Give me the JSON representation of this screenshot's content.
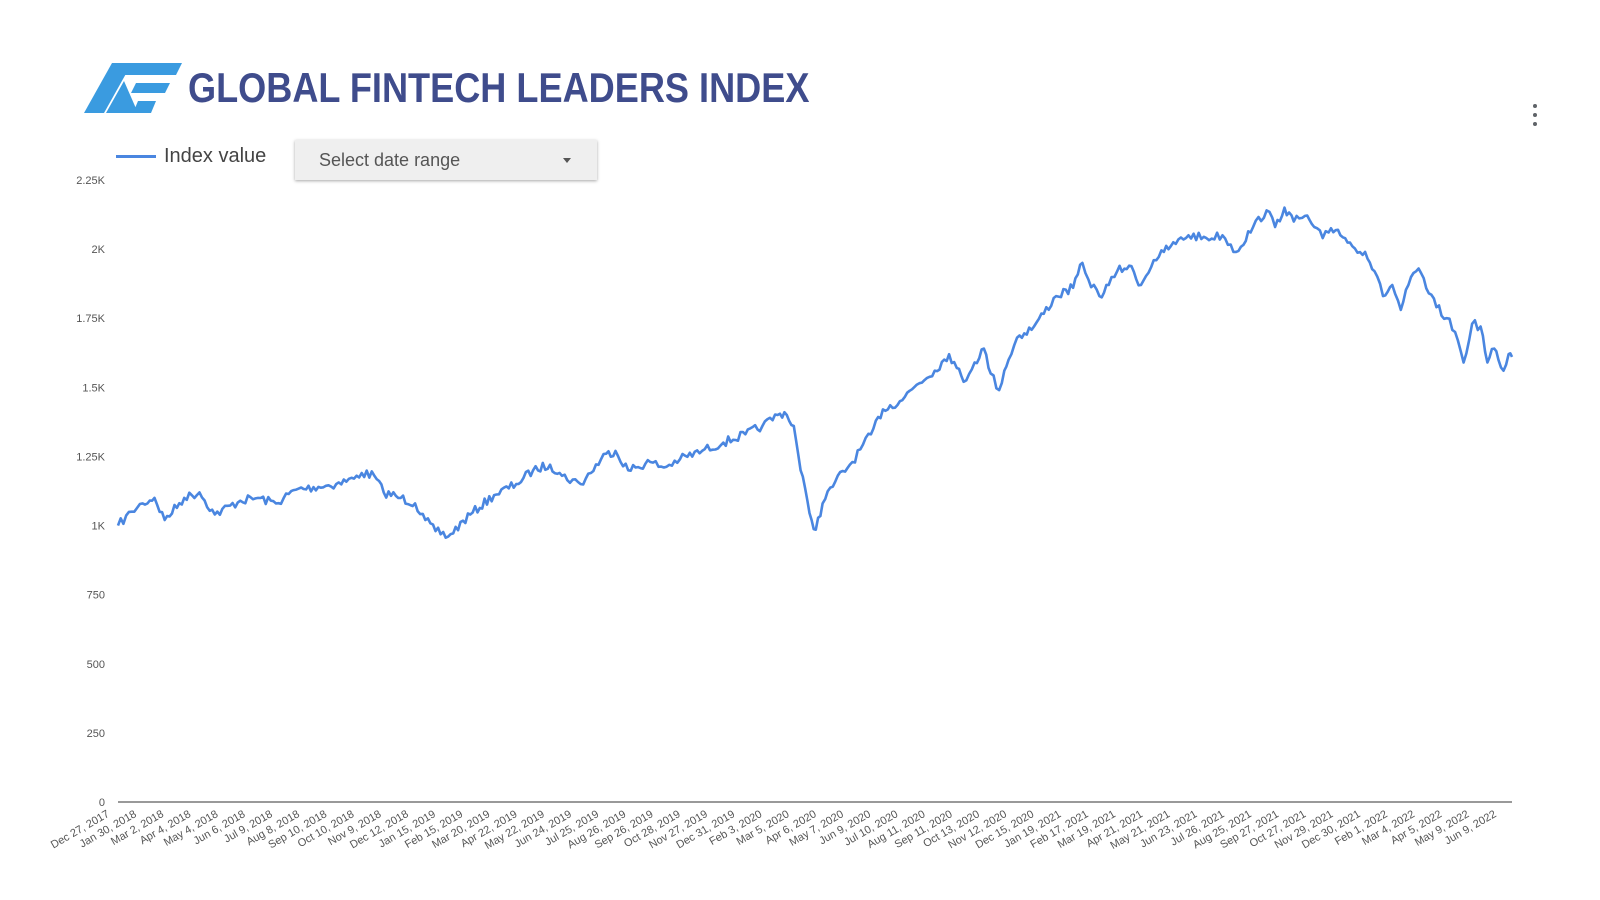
{
  "header": {
    "title": "GLOBAL FINTECH LEADERS INDEX",
    "logo_icon": "af-logo-icon"
  },
  "legend": {
    "label": "Index value",
    "color": "#4a86e0"
  },
  "controls": {
    "date_range_label": "Select date range",
    "menu_icon": "more-vertical-icon"
  },
  "chart_data": {
    "type": "line",
    "xlabel": "",
    "ylabel": "",
    "ylim": [
      0,
      2250
    ],
    "y_ticks": [
      0,
      250,
      500,
      750,
      1000,
      1250,
      1500,
      1750,
      2000,
      2250
    ],
    "y_tick_labels": [
      "0",
      "250",
      "500",
      "750",
      "1K",
      "1.25K",
      "1.5K",
      "1.75K",
      "2K",
      "2.25K"
    ],
    "x_tick_labels": [
      "Dec 27, 2017",
      "Jan 30, 2018",
      "Mar 2, 2018",
      "Apr 4, 2018",
      "May 4, 2018",
      "Jun 6, 2018",
      "Jul 9, 2018",
      "Aug 8, 2018",
      "Sep 10, 2018",
      "Oct 10, 2018",
      "Nov 9, 2018",
      "Dec 12, 2018",
      "Jan 15, 2019",
      "Feb 15, 2019",
      "Mar 20, 2019",
      "Apr 22, 2019",
      "May 22, 2019",
      "Jun 24, 2019",
      "Jul 25, 2019",
      "Aug 26, 2019",
      "Sep 26, 2019",
      "Oct 28, 2019",
      "Nov 27, 2019",
      "Dec 31, 2019",
      "Feb 3, 2020",
      "Mar 5, 2020",
      "Apr 6, 2020",
      "May 7, 2020",
      "Jun 9, 2020",
      "Jul 10, 2020",
      "Aug 11, 2020",
      "Sep 11, 2020",
      "Oct 13, 2020",
      "Nov 12, 2020",
      "Dec 15, 2020",
      "Jan 19, 2021",
      "Feb 17, 2021",
      "Mar 19, 2021",
      "Apr 21, 2021",
      "May 21, 2021",
      "Jun 23, 2021",
      "Jul 26, 2021",
      "Aug 25, 2021",
      "Sep 27, 2021",
      "Oct 27, 2021",
      "Nov 29, 2021",
      "Dec 30, 2021",
      "Feb 1, 2022",
      "Mar 4, 2022",
      "Apr 5, 2022",
      "May 9, 2022",
      "Jun 9, 2022"
    ],
    "series": [
      {
        "name": "Index value",
        "x": [
          "2017-12-27",
          "2018-01-12",
          "2018-01-25",
          "2018-02-08",
          "2018-02-20",
          "2018-03-15",
          "2018-04-02",
          "2018-04-20",
          "2018-05-20",
          "2018-06-10",
          "2018-07-01",
          "2018-07-25",
          "2018-08-20",
          "2018-09-10",
          "2018-10-01",
          "2018-10-10",
          "2018-10-25",
          "2018-11-05",
          "2018-11-25",
          "2018-12-12",
          "2018-12-24",
          "2019-01-05",
          "2019-01-20",
          "2019-02-15",
          "2019-03-15",
          "2019-04-10",
          "2019-04-30",
          "2019-05-20",
          "2019-06-03",
          "2019-06-25",
          "2019-07-25",
          "2019-08-05",
          "2019-08-20",
          "2019-09-15",
          "2019-10-01",
          "2019-10-20",
          "2019-11-15",
          "2019-12-10",
          "2020-01-05",
          "2020-01-25",
          "2020-02-12",
          "2020-02-20",
          "2020-03-02",
          "2020-03-10",
          "2020-03-18",
          "2020-03-23",
          "2020-03-28",
          "2020-04-05",
          "2020-04-20",
          "2020-05-10",
          "2020-06-01",
          "2020-06-15",
          "2020-07-05",
          "2020-07-25",
          "2020-08-15",
          "2020-09-01",
          "2020-09-10",
          "2020-09-18",
          "2020-10-01",
          "2020-10-12",
          "2020-10-20",
          "2020-10-30",
          "2020-11-05",
          "2020-11-10",
          "2020-11-20",
          "2020-12-10",
          "2021-01-05",
          "2021-01-25",
          "2021-02-05",
          "2021-02-12",
          "2021-02-25",
          "2021-03-08",
          "2021-03-18",
          "2021-04-01",
          "2021-04-15",
          "2021-04-30",
          "2021-05-12",
          "2021-05-20",
          "2021-06-10",
          "2021-07-01",
          "2021-07-20",
          "2021-08-05",
          "2021-08-25",
          "2021-09-10",
          "2021-09-20",
          "2021-10-01",
          "2021-10-12",
          "2021-10-25",
          "2021-11-05",
          "2021-11-15",
          "2021-11-22",
          "2021-12-03",
          "2021-12-20",
          "2022-01-04",
          "2022-01-15",
          "2022-01-25",
          "2022-02-05",
          "2022-02-15",
          "2022-02-24",
          "2022-03-08",
          "2022-03-20",
          "2022-03-29",
          "2022-04-10",
          "2022-04-20",
          "2022-04-30",
          "2022-05-10",
          "2022-05-20",
          "2022-05-28",
          "2022-06-05",
          "2022-06-10",
          "2022-06-16",
          "2022-06-22",
          "2022-06-26"
        ],
        "values": [
          1000,
          1050,
          1080,
          1100,
          1020,
          1100,
          1120,
          1040,
          1090,
          1100,
          1080,
          1130,
          1140,
          1150,
          1170,
          1190,
          1180,
          1120,
          1100,
          1080,
          1020,
          980,
          960,
          1040,
          1110,
          1150,
          1200,
          1220,
          1180,
          1150,
          1260,
          1270,
          1200,
          1230,
          1210,
          1240,
          1270,
          1300,
          1330,
          1360,
          1400,
          1410,
          1360,
          1200,
          1090,
          1020,
          985,
          1080,
          1160,
          1230,
          1330,
          1420,
          1450,
          1510,
          1560,
          1620,
          1570,
          1520,
          1590,
          1640,
          1550,
          1490,
          1560,
          1600,
          1680,
          1720,
          1830,
          1860,
          1950,
          1890,
          1830,
          1870,
          1920,
          1940,
          1870,
          1960,
          1990,
          2010,
          2050,
          2040,
          2050,
          1990,
          2080,
          2140,
          2080,
          2150,
          2100,
          2120,
          2080,
          2040,
          2060,
          2070,
          2010,
          1990,
          1920,
          1830,
          1870,
          1780,
          1870,
          1930,
          1840,
          1790,
          1750,
          1700,
          1590,
          1730,
          1720,
          1590,
          1640,
          1600,
          1560,
          1620,
          1610
        ]
      }
    ],
    "grid": false
  }
}
